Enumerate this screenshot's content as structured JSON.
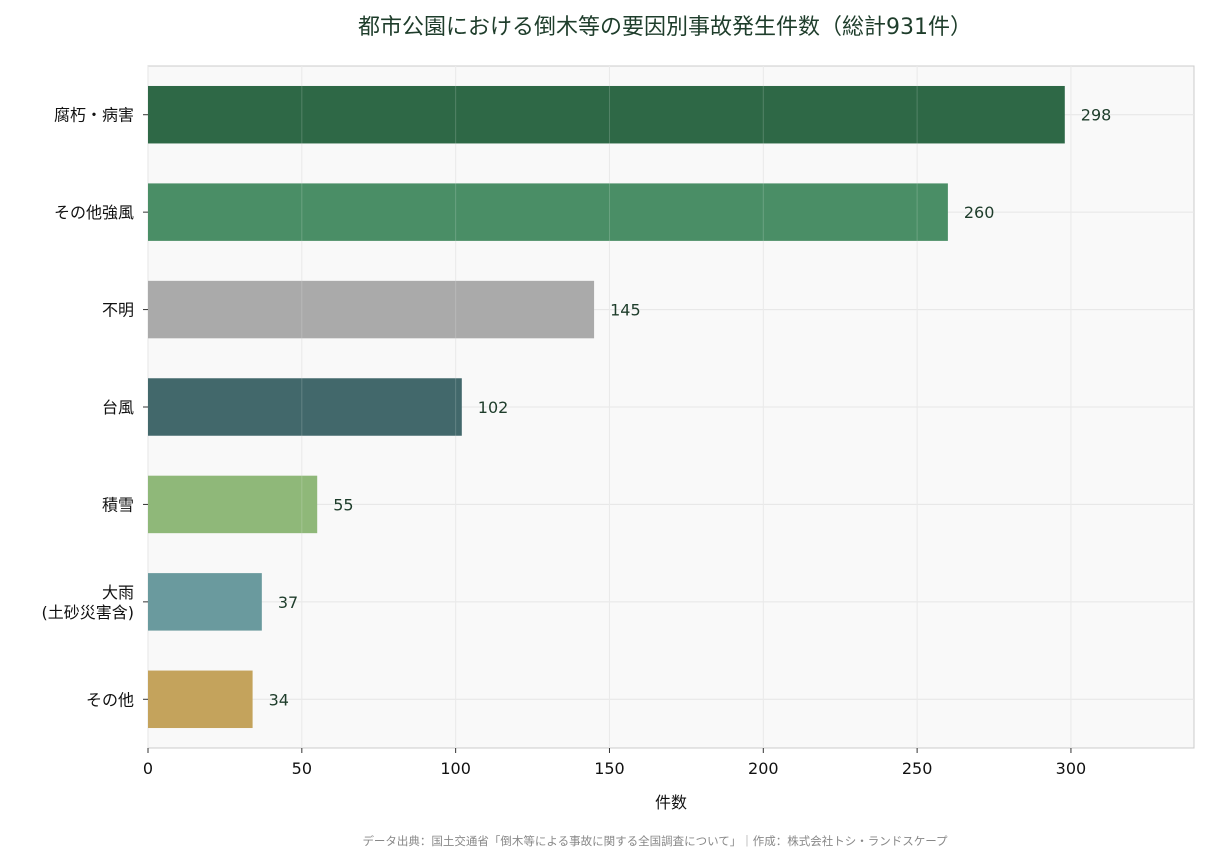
{
  "chart_data": {
    "type": "bar",
    "orientation": "horizontal",
    "title": "都市公園における倒木等の要因別事故発生件数（総計931件）",
    "xlabel": "件数",
    "ylabel": "",
    "categories": [
      [
        "腐朽・病害"
      ],
      [
        "その他強風"
      ],
      [
        "不明"
      ],
      [
        "台風"
      ],
      [
        "積雪"
      ],
      [
        "大雨",
        "(土砂災害含)"
      ],
      [
        "その他"
      ]
    ],
    "values": [
      298,
      260,
      145,
      102,
      55,
      37,
      34
    ],
    "data_labels": [
      "298",
      "260",
      "145",
      "102",
      "55",
      "37",
      "34"
    ],
    "colors": [
      "#2e6846",
      "#4a8e66",
      "#aaaaaa",
      "#42686b",
      "#8fb879",
      "#6a9a9e",
      "#c4a35c"
    ],
    "xlim": [
      0,
      340
    ],
    "xticks": [
      0,
      50,
      100,
      150,
      200,
      250,
      300
    ],
    "grid": true,
    "legend": "none"
  },
  "footer": "データ出典：国土交通省「倒木等による事故に関する全国調査について」｜作成：株式会社トシ・ランドスケープ"
}
